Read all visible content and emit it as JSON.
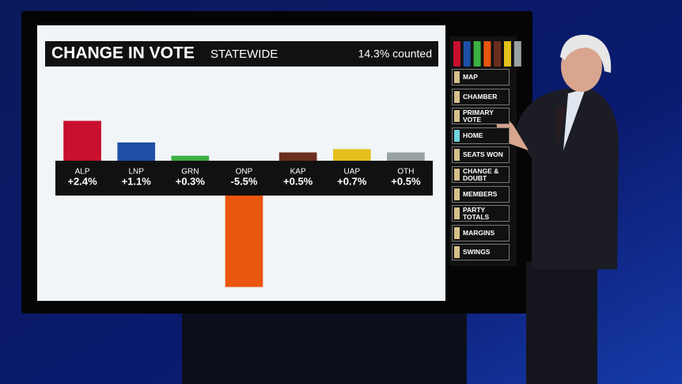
{
  "chart_data": {
    "type": "bar",
    "title": "CHANGE IN VOTE",
    "subtitle": "STATEWIDE",
    "annotation": "14.3% counted",
    "categories": [
      "ALP",
      "LNP",
      "GRN",
      "ONP",
      "KAP",
      "UAP",
      "OTH"
    ],
    "values": [
      2.4,
      1.1,
      0.3,
      -5.5,
      0.5,
      0.7,
      0.5
    ],
    "value_labels": [
      "+2.4%",
      "+1.1%",
      "+0.3%",
      "-5.5%",
      "+0.5%",
      "+0.7%",
      "+0.5%"
    ],
    "colors": [
      "#c8102e",
      "#1f4fa6",
      "#3cb043",
      "#e8560f",
      "#6b2f1f",
      "#e3c01c",
      "#9aa3a3"
    ]
  },
  "menu": {
    "items": [
      "MAP",
      "CHAMBER",
      "PRIMARY VOTE",
      "HOME",
      "SEATS WON",
      "CHANGE & DOUBT",
      "MEMBERS",
      "PARTY TOTALS",
      "MARGINS",
      "SWINGS"
    ],
    "active": "HOME"
  }
}
